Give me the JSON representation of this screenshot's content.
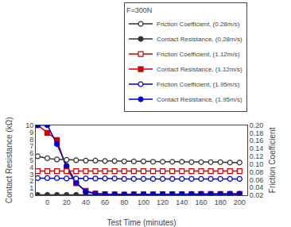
{
  "chart_data": {
    "type": "line",
    "title": "F=300N",
    "x_label": "Test Time (minutes)",
    "y_label": "Contact Resistance (kΩ)",
    "y2_label": "Friction Coefficient",
    "x": [
      -10,
      0,
      10,
      20,
      30,
      40,
      50,
      60,
      70,
      80,
      90,
      100,
      110,
      120,
      130,
      140,
      150,
      160,
      170,
      180,
      190,
      200
    ],
    "xlim": [
      -12,
      208
    ],
    "xticks": [
      0,
      20,
      40,
      60,
      80,
      100,
      120,
      140,
      160,
      180,
      200
    ],
    "ylim": [
      0,
      10
    ],
    "yticks": [
      0,
      1,
      2,
      3,
      4,
      5,
      6,
      7,
      8,
      9,
      10
    ],
    "y2lim": [
      0.02,
      0.2
    ],
    "y2ticks": [
      0.02,
      0.04,
      0.06,
      0.08,
      {
        "value": 0.1,
        "label": "0.10"
      },
      0.12,
      0.14,
      0.16,
      0.18,
      {
        "value": 0.2,
        "label": "0.20"
      }
    ],
    "grid": false,
    "legend": "upper right",
    "series": [
      {
        "name": "Friction Coefficient, (0.28m/s)",
        "color": "#333333",
        "marker": "circle-open",
        "axis": "y2",
        "values": [
          0.12,
          0.115,
          0.112,
          0.111,
          0.11,
          0.109,
          0.109,
          0.108,
          0.108,
          0.107,
          0.107,
          0.107,
          0.106,
          0.106,
          0.106,
          0.106,
          0.105,
          0.105,
          0.105,
          0.105,
          0.104,
          0.104
        ]
      },
      {
        "name": "Contact Resistance, (0.28m/s)",
        "color": "#333333",
        "marker": "circle",
        "axis": "y",
        "values": [
          0.05,
          0.05,
          0.05,
          0.05,
          0.05,
          0.05,
          0.05,
          0.05,
          0.05,
          0.05,
          0.05,
          0.05,
          0.05,
          0.05,
          0.05,
          0.05,
          0.05,
          0.05,
          0.05,
          0.05,
          0.05,
          0.05
        ]
      },
      {
        "name": "Friction Coefficient, (1.12m/s)",
        "color": "#cc0000",
        "marker": "square-open",
        "axis": "y2",
        "values": [
          0.082,
          0.082,
          0.082,
          0.082,
          0.082,
          0.082,
          0.082,
          0.082,
          0.082,
          0.082,
          0.082,
          0.082,
          0.082,
          0.082,
          0.082,
          0.082,
          0.082,
          0.082,
          0.082,
          0.082,
          0.082,
          0.082
        ]
      },
      {
        "name": "Contact Resistance, (1.12m/s)",
        "color": "#cc0000",
        "marker": "square",
        "axis": "y",
        "values": [
          10.0,
          8.9,
          7.9,
          3.8,
          1.7,
          0.65,
          0.25,
          0.15,
          0.12,
          0.1,
          0.12,
          0.13,
          0.14,
          0.15,
          0.16,
          0.17,
          0.17,
          0.18,
          0.18,
          0.18,
          0.18,
          0.18
        ]
      },
      {
        "name": "Friction Coefficient, (1.95m/s)",
        "color": "#0000cc",
        "marker": "circle-open",
        "axis": "y2",
        "values": [
          0.064,
          0.064,
          0.064,
          0.063,
          0.063,
          0.063,
          0.063,
          0.063,
          0.063,
          0.062,
          0.062,
          0.062,
          0.062,
          0.062,
          0.062,
          0.062,
          0.062,
          0.062,
          0.062,
          0.062,
          0.062,
          0.062
        ]
      },
      {
        "name": "Contact Resistance, (1.95m/s)",
        "color": "#0000cc",
        "marker": "circle",
        "axis": "y",
        "values": [
          10.0,
          10.0,
          7.3,
          4.2,
          1.8,
          0.5,
          0.22,
          0.15,
          0.12,
          0.1,
          0.12,
          0.13,
          0.14,
          0.15,
          0.16,
          0.17,
          0.18,
          0.18,
          0.19,
          0.2,
          0.21,
          0.22
        ]
      }
    ]
  }
}
